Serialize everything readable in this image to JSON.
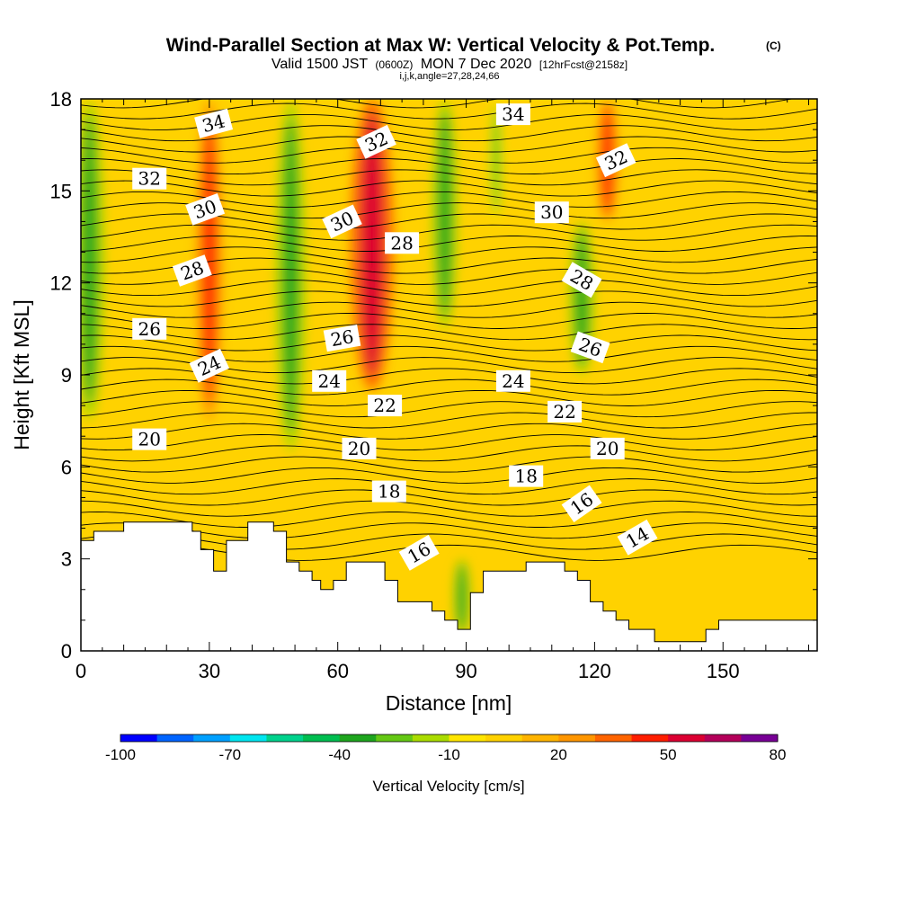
{
  "chart_data": {
    "type": "heatmap",
    "title": "Wind-Parallel Section at Max W: Vertical Velocity & Pot.Temp.",
    "title_mark": "(C)",
    "subtitle_parts": [
      "Valid 1500 JST",
      "(0600Z)",
      "MON 7 Dec 2020",
      "[12hrFcst@2158z]"
    ],
    "subtitle2": "i,j,k,angle=27,28,24,66",
    "xlabel": "Distance [nm]",
    "ylabel": "Height [Kft MSL]",
    "xlim": [
      0,
      172
    ],
    "ylim": [
      0,
      18
    ],
    "x_ticks": [
      0,
      30,
      60,
      90,
      120,
      150
    ],
    "y_ticks": [
      0,
      3,
      6,
      9,
      12,
      15,
      18
    ],
    "colorbar": {
      "label": "Vertical Velocity [cm/s]",
      "ticks": [
        -100,
        -70,
        -40,
        -10,
        20,
        50,
        80
      ],
      "levels": [
        -100,
        -90,
        -80,
        -70,
        -60,
        -50,
        -40,
        -30,
        -20,
        -10,
        0,
        10,
        20,
        30,
        40,
        50,
        60,
        70,
        80
      ],
      "colors": [
        "#0000ff",
        "#0064ff",
        "#00a0ff",
        "#00e6f0",
        "#00d28c",
        "#00be50",
        "#1ea51e",
        "#64c814",
        "#aadc00",
        "#ffe600",
        "#ffd200",
        "#ffb400",
        "#ff9600",
        "#ff6400",
        "#ff1e00",
        "#dc0032",
        "#b4005a",
        "#780096"
      ]
    },
    "updraft_cores": [
      {
        "x": 2,
        "z0": 7.5,
        "z1": 18,
        "w": 3.5,
        "v": -40
      },
      {
        "x": 30,
        "z0": 7.5,
        "z1": 18,
        "w": 3.0,
        "v": 40
      },
      {
        "x": 49,
        "z0": 6.5,
        "z1": 18,
        "w": 3.5,
        "v": -40
      },
      {
        "x": 68,
        "z0": 8.5,
        "z1": 18,
        "w": 5.0,
        "v": 50
      },
      {
        "x": 85,
        "z0": 10.5,
        "z1": 18,
        "w": 3.0,
        "v": -40
      },
      {
        "x": 97,
        "z0": 14,
        "z1": 18,
        "w": 2.0,
        "v": -30
      },
      {
        "x": 117,
        "z0": 9,
        "z1": 14,
        "w": 3.0,
        "v": -40
      },
      {
        "x": 123,
        "z0": 14,
        "z1": 18,
        "w": 2.5,
        "v": 40
      },
      {
        "x": 89,
        "z0": 0.5,
        "z1": 3,
        "w": 2.0,
        "v": -40
      }
    ],
    "isentrope_labels": [
      {
        "text": "34",
        "x": 31,
        "z": 17.2,
        "angle": -15
      },
      {
        "text": "34",
        "x": 101,
        "z": 17.5,
        "angle": 0
      },
      {
        "text": "32",
        "x": 16,
        "z": 15.4,
        "angle": 0
      },
      {
        "text": "32",
        "x": 69,
        "z": 16.6,
        "angle": -25
      },
      {
        "text": "32",
        "x": 125,
        "z": 16.0,
        "angle": -25
      },
      {
        "text": "30",
        "x": 29,
        "z": 14.4,
        "angle": -20
      },
      {
        "text": "30",
        "x": 61,
        "z": 14.0,
        "angle": -25
      },
      {
        "text": "30",
        "x": 110,
        "z": 14.3,
        "angle": 0
      },
      {
        "text": "28",
        "x": 26,
        "z": 12.4,
        "angle": -20
      },
      {
        "text": "28",
        "x": 75,
        "z": 13.3,
        "angle": 0
      },
      {
        "text": "28",
        "x": 117,
        "z": 12.1,
        "angle": 30
      },
      {
        "text": "26",
        "x": 16,
        "z": 10.5,
        "angle": 0
      },
      {
        "text": "26",
        "x": 61,
        "z": 10.2,
        "angle": -10
      },
      {
        "text": "26",
        "x": 119,
        "z": 9.9,
        "angle": 20
      },
      {
        "text": "24",
        "x": 30,
        "z": 9.3,
        "angle": -25
      },
      {
        "text": "24",
        "x": 58,
        "z": 8.8,
        "angle": 0
      },
      {
        "text": "24",
        "x": 101,
        "z": 8.8,
        "angle": 0
      },
      {
        "text": "22",
        "x": 71,
        "z": 8.0,
        "angle": 0
      },
      {
        "text": "22",
        "x": 113,
        "z": 7.8,
        "angle": 0
      },
      {
        "text": "20",
        "x": 16,
        "z": 6.9,
        "angle": 0
      },
      {
        "text": "20",
        "x": 65,
        "z": 6.6,
        "angle": 0
      },
      {
        "text": "20",
        "x": 123,
        "z": 6.6,
        "angle": 0
      },
      {
        "text": "18",
        "x": 72,
        "z": 5.2,
        "angle": 0
      },
      {
        "text": "18",
        "x": 104,
        "z": 5.7,
        "angle": 0
      },
      {
        "text": "16",
        "x": 79,
        "z": 3.2,
        "angle": -30
      },
      {
        "text": "16",
        "x": 117,
        "z": 4.8,
        "angle": -35
      },
      {
        "text": "14",
        "x": 130,
        "z": 3.7,
        "angle": -30
      }
    ],
    "terrain": [
      [
        0,
        3.6
      ],
      [
        3,
        3.6
      ],
      [
        3,
        3.9
      ],
      [
        10,
        3.9
      ],
      [
        10,
        4.2
      ],
      [
        26,
        4.2
      ],
      [
        26,
        3.9
      ],
      [
        28,
        3.9
      ],
      [
        28,
        3.3
      ],
      [
        31,
        3.3
      ],
      [
        31,
        2.6
      ],
      [
        34,
        2.6
      ],
      [
        34,
        3.6
      ],
      [
        39,
        3.6
      ],
      [
        39,
        4.2
      ],
      [
        45,
        4.2
      ],
      [
        45,
        3.9
      ],
      [
        48,
        3.9
      ],
      [
        48,
        2.9
      ],
      [
        51,
        2.9
      ],
      [
        51,
        2.6
      ],
      [
        54,
        2.6
      ],
      [
        54,
        2.3
      ],
      [
        56,
        2.3
      ],
      [
        56,
        2.0
      ],
      [
        59,
        2.0
      ],
      [
        59,
        2.3
      ],
      [
        62,
        2.3
      ],
      [
        62,
        2.9
      ],
      [
        71,
        2.9
      ],
      [
        71,
        2.3
      ],
      [
        74,
        2.3
      ],
      [
        74,
        1.6
      ],
      [
        82,
        1.6
      ],
      [
        82,
        1.3
      ],
      [
        85,
        1.3
      ],
      [
        85,
        1.0
      ],
      [
        88,
        1.0
      ],
      [
        88,
        0.7
      ],
      [
        91,
        0.7
      ],
      [
        91,
        1.9
      ],
      [
        94,
        1.9
      ],
      [
        94,
        2.6
      ],
      [
        104,
        2.6
      ],
      [
        104,
        2.9
      ],
      [
        113,
        2.9
      ],
      [
        113,
        2.6
      ],
      [
        116,
        2.6
      ],
      [
        116,
        2.3
      ],
      [
        119,
        2.3
      ],
      [
        119,
        1.6
      ],
      [
        122,
        1.6
      ],
      [
        122,
        1.3
      ],
      [
        125,
        1.3
      ],
      [
        125,
        1.0
      ],
      [
        128,
        1.0
      ],
      [
        128,
        0.7
      ],
      [
        134,
        0.7
      ],
      [
        134,
        0.3
      ],
      [
        146,
        0.3
      ],
      [
        146,
        0.7
      ],
      [
        149,
        0.7
      ],
      [
        149,
        1.0
      ],
      [
        172,
        1.0
      ]
    ]
  }
}
